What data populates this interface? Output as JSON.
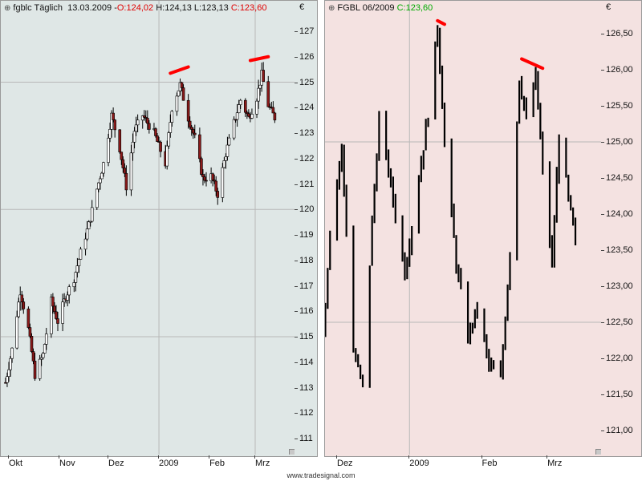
{
  "currency_symbol": "€",
  "panel_left": {
    "symbol": "fgblc Täglich",
    "date": "13.03.2009",
    "open_label": "O:124,02",
    "high_label": "H:124,13",
    "low_label": "L:123,13",
    "close_label": "C:123,60",
    "y_ticks": [
      "127",
      "126",
      "125",
      "124",
      "123",
      "122",
      "121",
      "120",
      "119",
      "118",
      "117",
      "116",
      "115",
      "114",
      "113",
      "112",
      "111"
    ],
    "x_ticks": [
      "Okt",
      "Nov",
      "Dez",
      "2009",
      "Feb",
      "Mrz"
    ]
  },
  "panel_right": {
    "symbol": "FGBL 06/2009",
    "close_label": "C:123,60",
    "y_ticks": [
      "126,50",
      "126,00",
      "125,50",
      "125,00",
      "124,50",
      "124,00",
      "123,50",
      "123,00",
      "122,50",
      "122,00",
      "121,50",
      "121,00"
    ],
    "x_ticks": [
      "Dez",
      "2009",
      "Feb",
      "Mrz"
    ]
  },
  "footer": "www.tradesignal.com",
  "colors": {
    "left_background": "#dfe7e6",
    "right_background": "#f4e2e1",
    "bull_candle": "#ffffff",
    "bear_candle": "#8b1a1a",
    "trendline": "#ff0000"
  },
  "chart_data": [
    {
      "type": "candlestick",
      "title": "fgblc Täglich",
      "ylim": [
        110.5,
        127.7
      ],
      "x_range": [
        "2008-09-29",
        "2009-03-13"
      ],
      "grid": true,
      "last_bar": {
        "date": "13.03.2009",
        "open": 124.02,
        "high": 124.13,
        "low": 123.13,
        "close": 123.6
      },
      "approx_close_path": [
        [
          "2008-09-29",
          113.2
        ],
        [
          "2008-10-03",
          114.5
        ],
        [
          "2008-10-08",
          116.8
        ],
        [
          "2008-10-13",
          115.3
        ],
        [
          "2008-10-17",
          113.5
        ],
        [
          "2008-10-22",
          114.3
        ],
        [
          "2008-10-27",
          116.4
        ],
        [
          "2008-10-31",
          115.6
        ],
        [
          "2008-11-05",
          116.6
        ],
        [
          "2008-11-10",
          117.3
        ],
        [
          "2008-11-14",
          118.3
        ],
        [
          "2008-11-19",
          119.4
        ],
        [
          "2008-11-24",
          120.8
        ],
        [
          "2008-11-28",
          121.8
        ],
        [
          "2008-12-03",
          123.7
        ],
        [
          "2008-12-08",
          122.4
        ],
        [
          "2008-12-12",
          120.9
        ],
        [
          "2008-12-17",
          123.1
        ],
        [
          "2008-12-22",
          123.7
        ],
        [
          "2008-12-29",
          123.0
        ],
        [
          "2009-01-05",
          121.8
        ],
        [
          "2009-01-09",
          124.0
        ],
        [
          "2009-01-14",
          124.9
        ],
        [
          "2009-01-19",
          123.6
        ],
        [
          "2009-01-23",
          122.8
        ],
        [
          "2009-01-28",
          121.2
        ],
        [
          "2009-02-02",
          121.3
        ],
        [
          "2009-02-06",
          120.6
        ],
        [
          "2009-02-11",
          122.2
        ],
        [
          "2009-02-16",
          123.4
        ],
        [
          "2009-02-20",
          124.3
        ],
        [
          "2009-02-25",
          123.6
        ],
        [
          "2009-03-02",
          124.4
        ],
        [
          "2009-03-05",
          125.3
        ],
        [
          "2009-03-09",
          124.1
        ],
        [
          "2009-03-13",
          123.6
        ]
      ],
      "trendlines": [
        {
          "from": [
            "2009-01-08",
            125.35
          ],
          "to": [
            "2009-01-19",
            125.6
          ]
        },
        {
          "from": [
            "2009-02-26",
            125.85
          ],
          "to": [
            "2009-03-09",
            126.0
          ]
        }
      ]
    },
    {
      "type": "bar",
      "title": "FGBL 06/2009",
      "ylim": [
        120.85,
        126.9
      ],
      "x_range": [
        "2008-11-24",
        "2009-03-13"
      ],
      "grid": true,
      "last_close": 123.6,
      "approx_price_path": [
        [
          "2008-11-24",
          121.8
        ],
        [
          "2008-11-28",
          123.8
        ],
        [
          "2008-12-03",
          124.9
        ],
        [
          "2008-12-08",
          122.1
        ],
        [
          "2008-12-12",
          121.6
        ],
        [
          "2008-12-16",
          123.9
        ],
        [
          "2008-12-19",
          125.3
        ],
        [
          "2008-12-23",
          124.6
        ],
        [
          "2008-12-30",
          123.2
        ],
        [
          "2009-01-05",
          124.5
        ],
        [
          "2009-01-09",
          125.4
        ],
        [
          "2009-01-13",
          126.6
        ],
        [
          "2009-01-16",
          125.0
        ],
        [
          "2009-01-21",
          123.3
        ],
        [
          "2009-01-26",
          122.3
        ],
        [
          "2009-01-30",
          122.7
        ],
        [
          "2009-02-04",
          121.9
        ],
        [
          "2009-02-09",
          121.7
        ],
        [
          "2009-02-13",
          123.5
        ],
        [
          "2009-02-17",
          125.9
        ],
        [
          "2009-02-20",
          125.3
        ],
        [
          "2009-02-24",
          125.9
        ],
        [
          "2009-02-27",
          124.6
        ],
        [
          "2009-03-03",
          123.3
        ],
        [
          "2009-03-06",
          125.1
        ],
        [
          "2009-03-10",
          124.2
        ],
        [
          "2009-03-13",
          123.6
        ]
      ],
      "trendlines": [
        {
          "from": [
            "2009-01-13",
            126.68
          ],
          "to": [
            "2009-01-16",
            126.63
          ]
        },
        {
          "from": [
            "2009-02-18",
            126.15
          ],
          "to": [
            "2009-02-27",
            126.02
          ]
        }
      ]
    }
  ]
}
